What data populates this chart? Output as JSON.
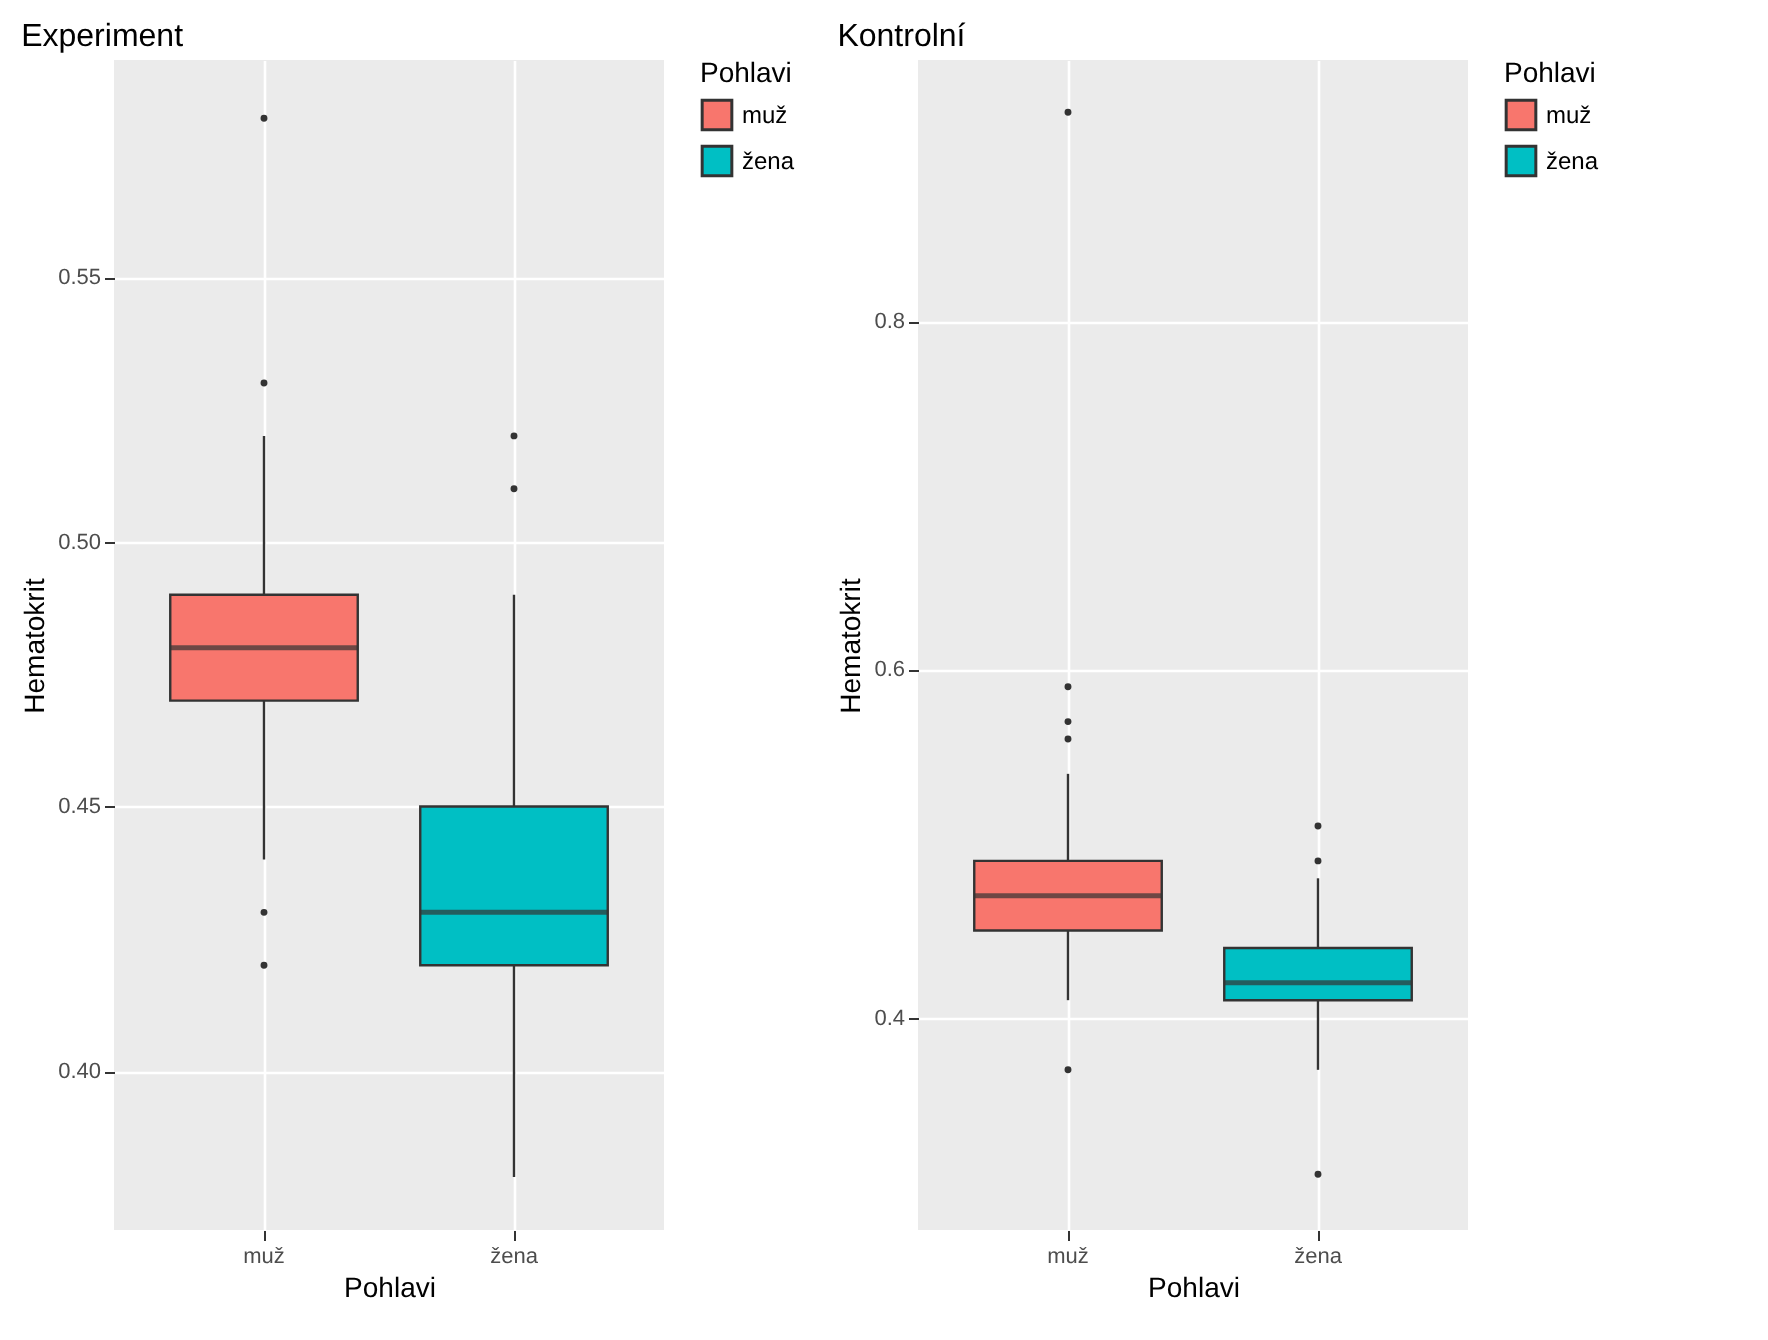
{
  "chart_data": [
    {
      "type": "box",
      "title": "Experiment",
      "xlabel": "Pohlavi",
      "ylabel": "Hematokrit",
      "legend_title": "Pohlavi",
      "legend": "right",
      "grid": true,
      "categories": [
        "muž",
        "žena"
      ],
      "series": [
        {
          "name": "muž",
          "color": "#f8766d",
          "boxes": [
            {
              "low": 0.44,
              "q1": 0.47,
              "median": 0.48,
              "q3": 0.49,
              "high": 0.52,
              "outliers": [
                0.58,
                0.53,
                0.43,
                0.42
              ]
            },
            null
          ]
        },
        {
          "name": "žena",
          "color": "#00bfc4",
          "boxes": [
            null,
            {
              "low": 0.38,
              "q1": 0.42,
              "median": 0.43,
              "q3": 0.45,
              "high": 0.49,
              "outliers": [
                0.52,
                0.51
              ]
            }
          ]
        }
      ],
      "ylim": [
        0.37,
        0.591
      ],
      "yticks": [
        {
          "value": 0.4,
          "label": "0.40"
        },
        0.45,
        {
          "value": 0.5,
          "label": "0.50"
        },
        0.55
      ]
    },
    {
      "type": "box",
      "title": "Kontrolní",
      "xlabel": "Pohlavi",
      "ylabel": "Hematokrit",
      "legend_title": "Pohlavi",
      "legend": "right",
      "grid": true,
      "categories": [
        "muž",
        "žena"
      ],
      "series": [
        {
          "name": "muž",
          "color": "#f8766d",
          "boxes": [
            {
              "low": 0.41,
              "q1": 0.45,
              "median": 0.47,
              "q3": 0.49,
              "high": 0.54,
              "outliers": [
                0.92,
                0.59,
                0.57,
                0.56,
                0.37
              ]
            },
            null
          ]
        },
        {
          "name": "žena",
          "color": "#00bfc4",
          "boxes": [
            null,
            {
              "low": 0.37,
              "q1": 0.41,
              "median": 0.42,
              "q3": 0.44,
              "high": 0.48,
              "outliers": [
                0.51,
                0.49,
                0.31
              ]
            }
          ]
        }
      ],
      "ylim": [
        0.278,
        0.95
      ],
      "yticks": [
        0.4,
        0.6,
        0.8
      ]
    }
  ]
}
